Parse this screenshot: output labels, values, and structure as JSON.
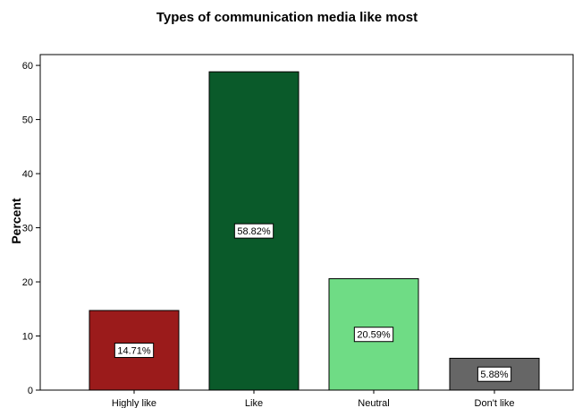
{
  "chart_data": {
    "type": "bar",
    "title": "Types of communication media like most",
    "xlabel": "",
    "ylabel": "Percent",
    "categories": [
      "Highly like",
      "Like",
      "Neutral",
      "Don't like"
    ],
    "values": [
      14.71,
      58.82,
      20.59,
      5.88
    ],
    "data_labels": [
      "14.71%",
      "58.82%",
      "20.59%",
      "5.88%"
    ],
    "colors": [
      "#9b1b1b",
      "#0a5a2a",
      "#6fdc85",
      "#666666"
    ],
    "ylim": [
      0,
      62
    ],
    "yticks": [
      0,
      10,
      20,
      30,
      40,
      50,
      60
    ],
    "grid": false,
    "legend": "none"
  }
}
